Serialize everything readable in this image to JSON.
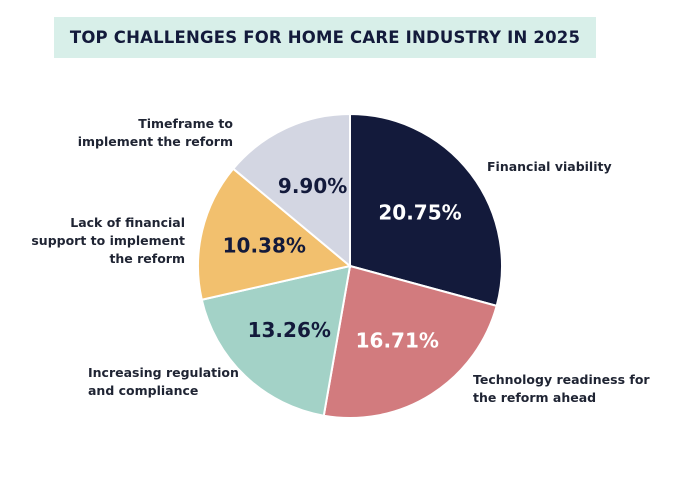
{
  "chart_data": {
    "type": "pie",
    "title": "TOP CHALLENGES FOR HOME CARE INDUSTRY IN 2025",
    "slices": [
      {
        "label": "Financial viability",
        "value": 20.75,
        "display": "20.75%",
        "color": "#131a3b",
        "text_color": "#ffffff"
      },
      {
        "label": "Technology readiness for the reform ahead",
        "value": 16.71,
        "display": "16.71%",
        "color": "#d27b7e",
        "text_color": "#ffffff"
      },
      {
        "label": "Increasing regulation and compliance",
        "value": 13.26,
        "display": "13.26%",
        "color": "#a3d2c7",
        "text_color": "#131a3b"
      },
      {
        "label": "Lack of financial support to implement the reform",
        "value": 10.38,
        "display": "10.38%",
        "color": "#f2c06e",
        "text_color": "#131a3b"
      },
      {
        "label": "Timeframe to implement the reform",
        "value": 9.9,
        "display": "9.90%",
        "color": "#d3d6e2",
        "text_color": "#131a3b"
      }
    ]
  }
}
